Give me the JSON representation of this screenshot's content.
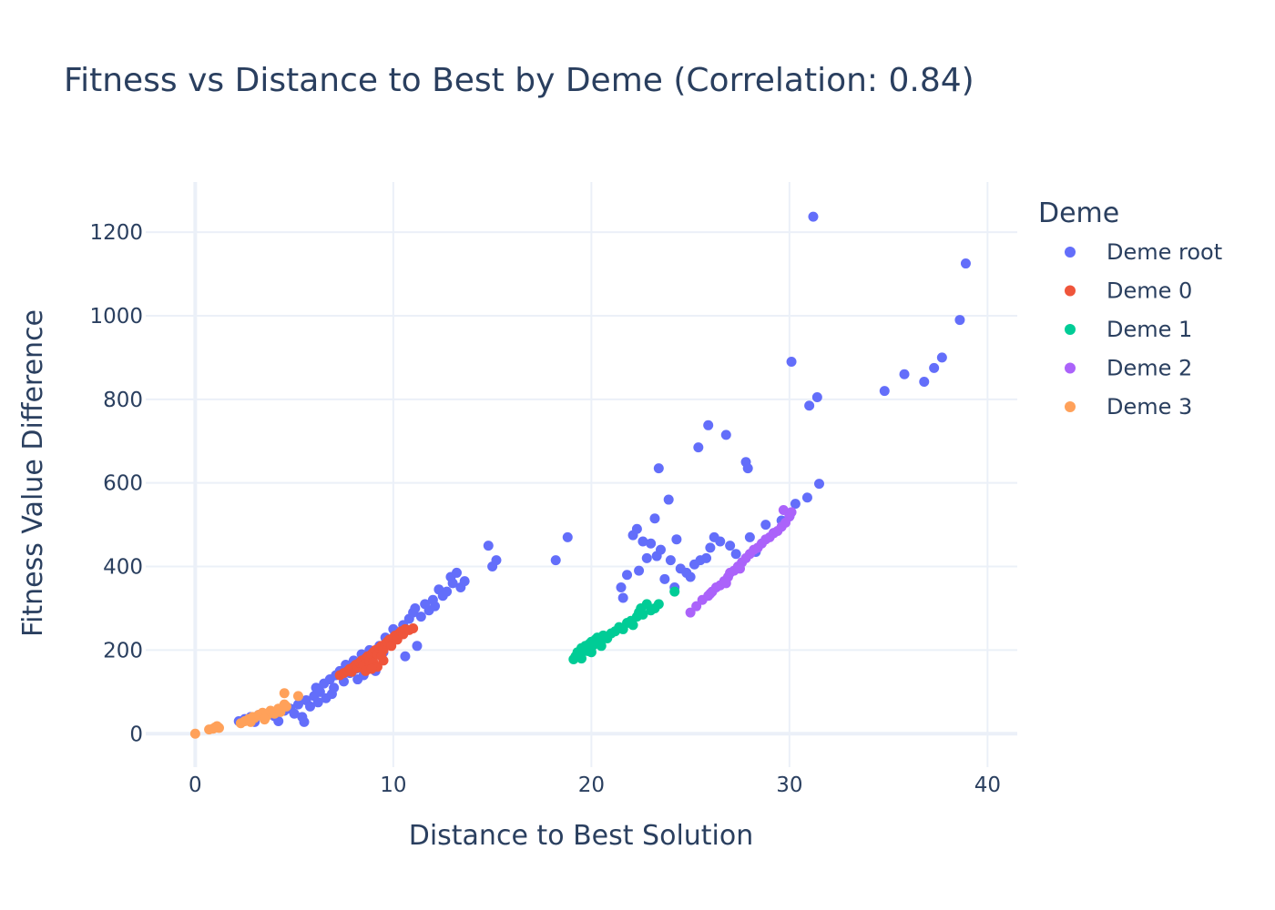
{
  "chart_data": {
    "type": "scatter",
    "title": "Fitness vs Distance to Best by Deme (Correlation: 0.84)",
    "xlabel": "Distance to Best Solution",
    "ylabel": "Fitness Value Difference",
    "xlim": [
      -2.5,
      41.5
    ],
    "ylim": [
      -80,
      1320
    ],
    "xticks": [
      0,
      10,
      20,
      30,
      40
    ],
    "yticks": [
      0,
      200,
      400,
      600,
      800,
      1000,
      1200
    ],
    "grid": true,
    "legend_title": "Deme",
    "legend_position": "right",
    "series": [
      {
        "name": "Deme root",
        "color": "#636efa",
        "points": [
          [
            2.2,
            30
          ],
          [
            2.5,
            35
          ],
          [
            2.8,
            40
          ],
          [
            3.0,
            28
          ],
          [
            3.2,
            45
          ],
          [
            3.5,
            38
          ],
          [
            3.8,
            50
          ],
          [
            4.0,
            42
          ],
          [
            4.2,
            30
          ],
          [
            4.5,
            55
          ],
          [
            4.8,
            60
          ],
          [
            5.0,
            48
          ],
          [
            5.2,
            70
          ],
          [
            5.4,
            40
          ],
          [
            5.5,
            28
          ],
          [
            5.6,
            80
          ],
          [
            5.8,
            65
          ],
          [
            6.0,
            90
          ],
          [
            6.1,
            110
          ],
          [
            6.2,
            75
          ],
          [
            6.3,
            100
          ],
          [
            6.5,
            120
          ],
          [
            6.6,
            85
          ],
          [
            6.8,
            130
          ],
          [
            6.9,
            95
          ],
          [
            7.0,
            110
          ],
          [
            7.1,
            140
          ],
          [
            7.3,
            150
          ],
          [
            7.5,
            125
          ],
          [
            7.6,
            165
          ],
          [
            7.8,
            145
          ],
          [
            8.0,
            175
          ],
          [
            8.1,
            155
          ],
          [
            8.2,
            130
          ],
          [
            8.4,
            190
          ],
          [
            8.5,
            140
          ],
          [
            8.7,
            170
          ],
          [
            8.8,
            200
          ],
          [
            9.0,
            185
          ],
          [
            9.1,
            150
          ],
          [
            9.3,
            210
          ],
          [
            9.5,
            195
          ],
          [
            9.6,
            230
          ],
          [
            9.8,
            215
          ],
          [
            10.0,
            250
          ],
          [
            10.1,
            230
          ],
          [
            10.3,
            240
          ],
          [
            10.5,
            260
          ],
          [
            10.6,
            185
          ],
          [
            10.8,
            275
          ],
          [
            11.0,
            290
          ],
          [
            11.1,
            300
          ],
          [
            11.2,
            210
          ],
          [
            11.4,
            280
          ],
          [
            11.6,
            310
          ],
          [
            11.8,
            295
          ],
          [
            12.0,
            320
          ],
          [
            12.1,
            305
          ],
          [
            12.3,
            345
          ],
          [
            12.5,
            330
          ],
          [
            12.7,
            340
          ],
          [
            12.9,
            375
          ],
          [
            13.0,
            360
          ],
          [
            13.2,
            385
          ],
          [
            13.4,
            350
          ],
          [
            13.6,
            365
          ],
          [
            14.8,
            450
          ],
          [
            15.0,
            400
          ],
          [
            15.2,
            415
          ],
          [
            18.2,
            415
          ],
          [
            18.8,
            470
          ],
          [
            21.5,
            350
          ],
          [
            21.6,
            325
          ],
          [
            21.8,
            380
          ],
          [
            22.1,
            475
          ],
          [
            22.3,
            490
          ],
          [
            22.4,
            390
          ],
          [
            22.6,
            460
          ],
          [
            22.8,
            420
          ],
          [
            23.0,
            455
          ],
          [
            23.2,
            515
          ],
          [
            23.3,
            425
          ],
          [
            23.4,
            635
          ],
          [
            23.5,
            440
          ],
          [
            23.7,
            370
          ],
          [
            23.9,
            560
          ],
          [
            24.0,
            415
          ],
          [
            24.2,
            350
          ],
          [
            24.3,
            465
          ],
          [
            24.5,
            395
          ],
          [
            24.8,
            385
          ],
          [
            25.0,
            375
          ],
          [
            25.2,
            405
          ],
          [
            25.4,
            685
          ],
          [
            25.5,
            415
          ],
          [
            25.8,
            420
          ],
          [
            25.9,
            738
          ],
          [
            26.0,
            445
          ],
          [
            26.2,
            470
          ],
          [
            26.5,
            460
          ],
          [
            26.8,
            715
          ],
          [
            27.0,
            450
          ],
          [
            27.3,
            430
          ],
          [
            27.8,
            650
          ],
          [
            27.9,
            635
          ],
          [
            28.0,
            470
          ],
          [
            28.3,
            435
          ],
          [
            28.8,
            500
          ],
          [
            29.2,
            480
          ],
          [
            29.6,
            510
          ],
          [
            30.0,
            520
          ],
          [
            30.1,
            890
          ],
          [
            30.3,
            550
          ],
          [
            30.9,
            565
          ],
          [
            31.0,
            785
          ],
          [
            31.2,
            1237
          ],
          [
            31.4,
            805
          ],
          [
            31.5,
            598
          ],
          [
            34.8,
            820
          ],
          [
            35.8,
            860
          ],
          [
            36.8,
            842
          ],
          [
            37.3,
            875
          ],
          [
            37.7,
            900
          ],
          [
            38.6,
            990
          ],
          [
            38.9,
            1125
          ]
        ]
      },
      {
        "name": "Deme 0",
        "color": "#ef553b",
        "points": [
          [
            7.3,
            140
          ],
          [
            7.5,
            145
          ],
          [
            7.7,
            150
          ],
          [
            7.8,
            155
          ],
          [
            7.9,
            148
          ],
          [
            8.0,
            160
          ],
          [
            8.1,
            165
          ],
          [
            8.2,
            158
          ],
          [
            8.3,
            170
          ],
          [
            8.4,
            175
          ],
          [
            8.5,
            165
          ],
          [
            8.6,
            180
          ],
          [
            8.7,
            185
          ],
          [
            8.8,
            175
          ],
          [
            8.9,
            190
          ],
          [
            9.0,
            195
          ],
          [
            9.0,
            170
          ],
          [
            9.1,
            200
          ],
          [
            9.2,
            190
          ],
          [
            9.2,
            160
          ],
          [
            9.3,
            205
          ],
          [
            9.4,
            210
          ],
          [
            9.5,
            200
          ],
          [
            9.5,
            175
          ],
          [
            9.6,
            215
          ],
          [
            9.7,
            220
          ],
          [
            9.8,
            225
          ],
          [
            9.9,
            210
          ],
          [
            10.0,
            230
          ],
          [
            10.1,
            235
          ],
          [
            10.2,
            225
          ],
          [
            10.3,
            240
          ],
          [
            10.4,
            245
          ],
          [
            10.5,
            238
          ],
          [
            10.6,
            250
          ],
          [
            10.8,
            248
          ],
          [
            11.0,
            252
          ],
          [
            8.6,
            150
          ],
          [
            8.9,
            155
          ],
          [
            9.4,
            185
          ]
        ]
      },
      {
        "name": "Deme 1",
        "color": "#00cc96",
        "points": [
          [
            19.1,
            178
          ],
          [
            19.2,
            185
          ],
          [
            19.3,
            195
          ],
          [
            19.4,
            190
          ],
          [
            19.5,
            205
          ],
          [
            19.6,
            200
          ],
          [
            19.7,
            210
          ],
          [
            19.8,
            198
          ],
          [
            19.9,
            215
          ],
          [
            20.0,
            220
          ],
          [
            20.1,
            212
          ],
          [
            20.2,
            225
          ],
          [
            20.3,
            230
          ],
          [
            20.4,
            218
          ],
          [
            20.6,
            235
          ],
          [
            20.8,
            228
          ],
          [
            21.0,
            240
          ],
          [
            21.2,
            245
          ],
          [
            21.4,
            255
          ],
          [
            21.6,
            250
          ],
          [
            21.8,
            265
          ],
          [
            22.0,
            270
          ],
          [
            22.1,
            260
          ],
          [
            22.3,
            280
          ],
          [
            22.4,
            290
          ],
          [
            22.5,
            300
          ],
          [
            22.6,
            285
          ],
          [
            22.8,
            310
          ],
          [
            23.0,
            295
          ],
          [
            23.2,
            300
          ],
          [
            23.4,
            310
          ],
          [
            24.2,
            340
          ],
          [
            19.5,
            180
          ],
          [
            20.0,
            195
          ],
          [
            20.5,
            210
          ]
        ]
      },
      {
        "name": "Deme 2",
        "color": "#ab63fa",
        "points": [
          [
            25.0,
            290
          ],
          [
            25.3,
            305
          ],
          [
            25.6,
            320
          ],
          [
            25.9,
            330
          ],
          [
            26.1,
            340
          ],
          [
            26.3,
            350
          ],
          [
            26.5,
            355
          ],
          [
            26.7,
            365
          ],
          [
            26.9,
            375
          ],
          [
            27.0,
            385
          ],
          [
            27.2,
            390
          ],
          [
            27.4,
            400
          ],
          [
            27.6,
            410
          ],
          [
            27.8,
            420
          ],
          [
            28.0,
            430
          ],
          [
            28.2,
            440
          ],
          [
            28.4,
            445
          ],
          [
            28.6,
            455
          ],
          [
            28.8,
            465
          ],
          [
            29.0,
            470
          ],
          [
            29.2,
            480
          ],
          [
            29.4,
            485
          ],
          [
            29.6,
            495
          ],
          [
            29.8,
            505
          ],
          [
            30.0,
            520
          ],
          [
            29.7,
            535
          ],
          [
            30.1,
            530
          ],
          [
            26.0,
            335
          ],
          [
            26.8,
            360
          ],
          [
            27.5,
            395
          ]
        ]
      },
      {
        "name": "Deme 3",
        "color": "#ffa15a",
        "points": [
          [
            0.0,
            0
          ],
          [
            0.7,
            10
          ],
          [
            0.9,
            12
          ],
          [
            1.0,
            15
          ],
          [
            1.1,
            18
          ],
          [
            1.2,
            14
          ],
          [
            2.3,
            25
          ],
          [
            2.5,
            30
          ],
          [
            2.7,
            35
          ],
          [
            2.9,
            40
          ],
          [
            3.0,
            38
          ],
          [
            3.2,
            45
          ],
          [
            3.4,
            50
          ],
          [
            3.6,
            42
          ],
          [
            3.8,
            55
          ],
          [
            4.0,
            48
          ],
          [
            4.2,
            60
          ],
          [
            4.3,
            52
          ],
          [
            4.5,
            70
          ],
          [
            4.6,
            65
          ],
          [
            4.5,
            97
          ],
          [
            5.2,
            90
          ],
          [
            2.8,
            28
          ],
          [
            3.5,
            34
          ]
        ]
      }
    ]
  }
}
